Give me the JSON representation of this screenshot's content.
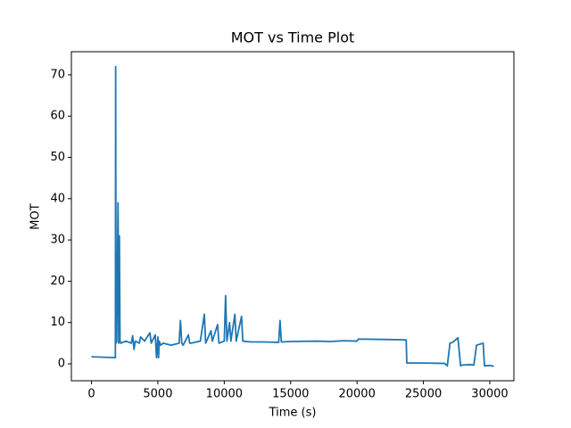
{
  "chart_data": {
    "type": "line",
    "title": "MOT vs Time Plot",
    "x_label": "Time (s)",
    "y_label": "MOT",
    "color": "#1f77b4",
    "x": [
      0,
      900,
      1800,
      1820,
      1850,
      1900,
      2000,
      2050,
      2100,
      2150,
      2200,
      2600,
      3000,
      3100,
      3200,
      3300,
      3600,
      3700,
      4000,
      4400,
      4500,
      4800,
      4900,
      5000,
      5050,
      5100,
      5200,
      5400,
      6000,
      6600,
      6700,
      6800,
      6900,
      7300,
      7400,
      7500,
      8200,
      8500,
      8600,
      9000,
      9100,
      9500,
      9600,
      10000,
      10100,
      10200,
      10400,
      10500,
      10800,
      10900,
      11300,
      11400,
      12000,
      13000,
      14100,
      14200,
      14300,
      15000,
      17000,
      18000,
      19000,
      20000,
      20100,
      22000,
      23700,
      23750,
      25000,
      26600,
      26800,
      27000,
      27200,
      27600,
      27800,
      27900,
      28500,
      28800,
      29000,
      29500,
      29600,
      30000,
      30300
    ],
    "values": [
      1.7,
      1.6,
      1.5,
      72,
      5,
      5.5,
      39,
      5,
      31,
      5.5,
      5,
      5.5,
      5,
      6.8,
      3.5,
      5.5,
      5,
      6.5,
      5.5,
      7.5,
      5,
      7,
      1.5,
      6.5,
      1.5,
      5.5,
      4.5,
      5,
      4.5,
      5,
      10.5,
      5,
      4.5,
      7,
      5,
      5,
      5.5,
      12,
      5,
      8,
      5.5,
      9.5,
      5,
      5.5,
      16.5,
      5.5,
      10,
      5.5,
      12,
      5.5,
      11.5,
      5.5,
      5.3,
      5.3,
      5.2,
      10.5,
      5.3,
      5.4,
      5.5,
      5.4,
      5.6,
      5.5,
      6,
      5.9,
      5.8,
      0.2,
      0.2,
      0.1,
      -0.5,
      5,
      5.2,
      6.3,
      -0.5,
      -0.3,
      -0.2,
      -0.3,
      4.5,
      5,
      -0.5,
      -0.4,
      -0.6
    ],
    "xlim": [
      -1515,
      31815
    ],
    "ylim": [
      -4.1,
      75.6
    ],
    "xticks": [
      0,
      5000,
      10000,
      15000,
      20000,
      25000,
      30000
    ],
    "yticks": [
      0,
      10,
      20,
      30,
      40,
      50,
      60,
      70
    ]
  }
}
